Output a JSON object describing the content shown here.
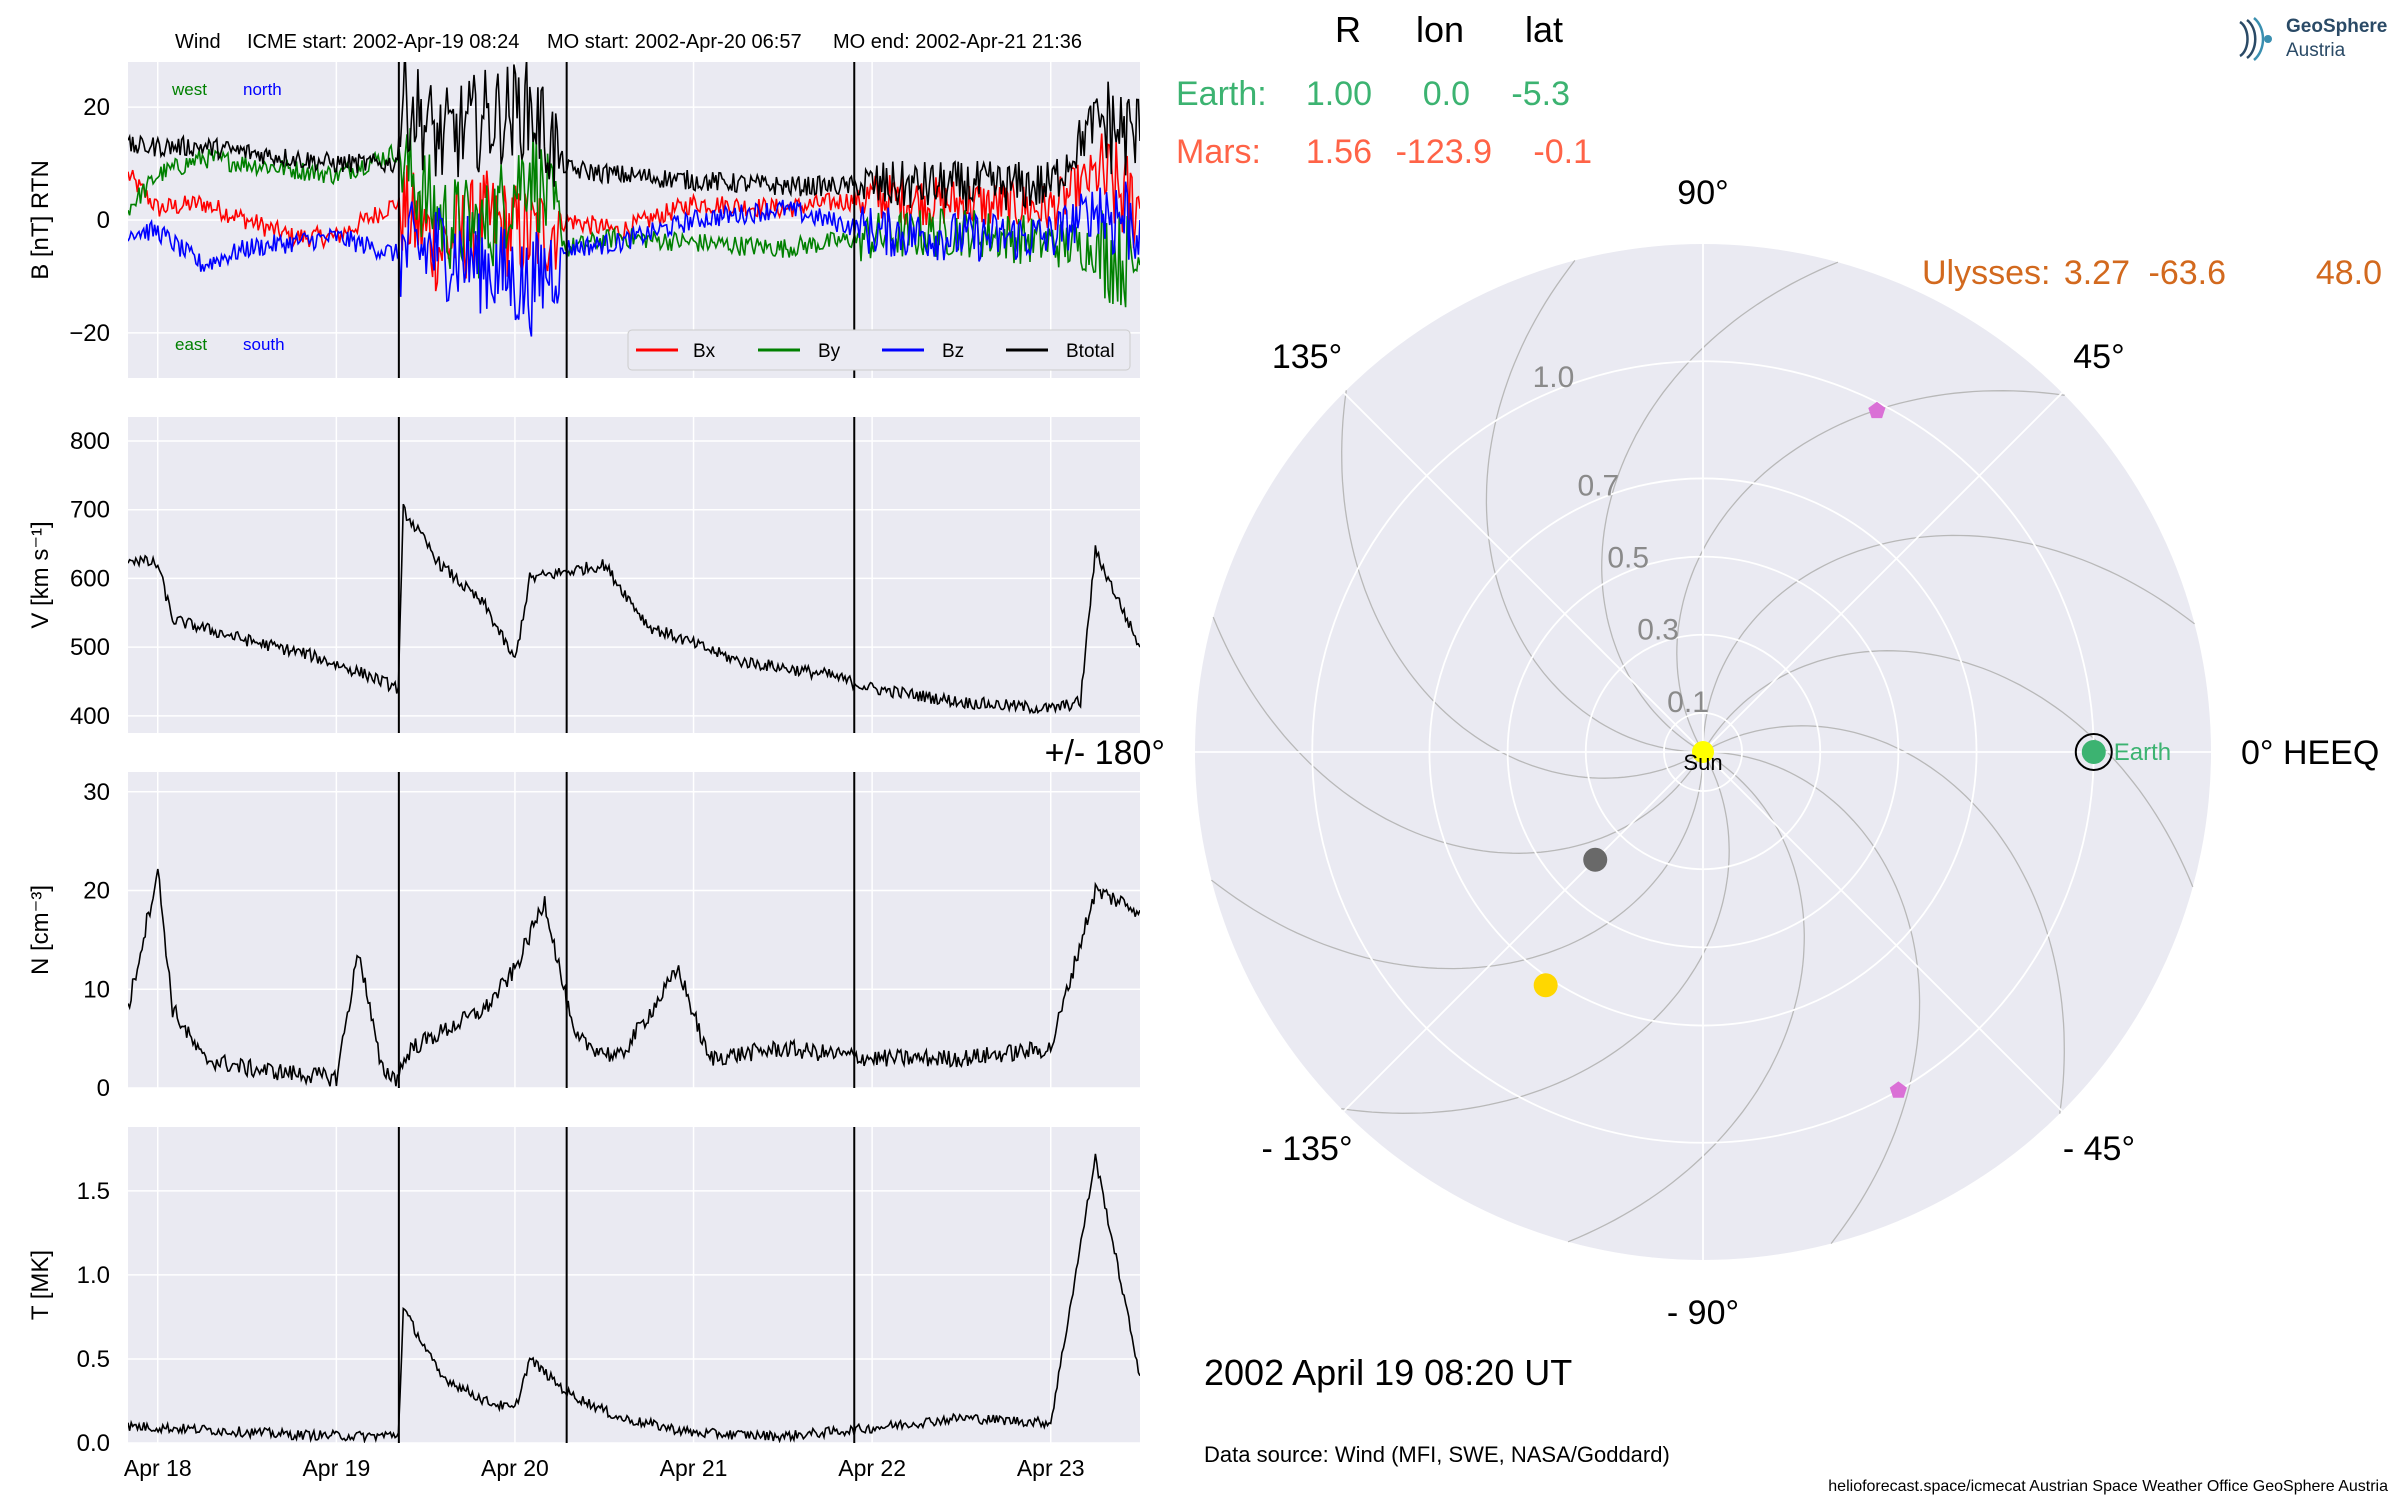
{
  "header": {
    "spacecraft": "Wind",
    "icme_start": "ICME start: 2002-Apr-19 08:24",
    "mo_start": "MO start: 2002-Apr-20 06:57",
    "mo_end": "MO end: 2002-Apr-21 21:36"
  },
  "logo": {
    "line1": "GeoSphere",
    "line2": "Austria"
  },
  "footer": {
    "date": "2002 April 19  08:20 UT",
    "source": "Data source: Wind (MFI, SWE, NASA/Goddard)",
    "credits": "helioforecast.space/icmecat   Austrian Space Weather Office   GeoSphere Austria"
  },
  "colors": {
    "panel_bg": "#eaeaf2",
    "grid": "#ffffff",
    "bx": "#ff0000",
    "by": "#008000",
    "bz": "#0000ff",
    "btotal": "#000000",
    "earth": "#3cb371",
    "mars": "#ff6347",
    "ulysses": "#d2691e",
    "sun": "#ffff00",
    "mercury": "#696969",
    "venus": "#ffd700",
    "stereo": "#da70d6"
  },
  "chart_data": [
    {
      "type": "line",
      "panel": "magnetic-field",
      "ylabel": "B [nT] RTN",
      "ylim": [
        -28,
        28
      ],
      "yticks": [
        -20,
        0,
        20
      ],
      "ytick_labels": [
        "−20",
        "0",
        "20"
      ],
      "x_start": "2002-04-17 20:00",
      "x_end": "2002-04-23 12:00",
      "x_ticks": [
        "2002-04-18",
        "2002-04-19",
        "2002-04-20",
        "2002-04-21",
        "2002-04-22",
        "2002-04-23"
      ],
      "x_tick_labels": [
        "Apr 18",
        "Apr 19",
        "Apr 20",
        "Apr 21",
        "Apr 22",
        "Apr 23"
      ],
      "event_lines": [
        "2002-04-19 08:24",
        "2002-04-20 06:57",
        "2002-04-21 21:36"
      ],
      "annotations": [
        "west",
        "north",
        "east",
        "south"
      ],
      "legend_placement": "lower-right",
      "grid": true,
      "series": [
        {
          "name": "Bx",
          "color": "#ff0000",
          "points": [
            [
              "2002-04-17 20:00",
              8
            ],
            [
              "2002-04-18 00:00",
              2
            ],
            [
              "2002-04-18 06:00",
              3
            ],
            [
              "2002-04-18 12:00",
              0
            ],
            [
              "2002-04-18 18:00",
              -3
            ],
            [
              "2002-04-19 00:00",
              -3
            ],
            [
              "2002-04-19 08:00",
              3
            ],
            [
              "2002-04-19 14:00",
              -5
            ],
            [
              "2002-04-19 20:00",
              0
            ],
            [
              "2002-04-20 02:00",
              -3
            ],
            [
              "2002-04-20 07:00",
              0
            ],
            [
              "2002-04-20 14:00",
              -2
            ],
            [
              "2002-04-21 00:00",
              3
            ],
            [
              "2002-04-21 12:00",
              2
            ],
            [
              "2002-04-22 00:00",
              4
            ],
            [
              "2002-04-22 12:00",
              3
            ],
            [
              "2002-04-23 00:00",
              2
            ],
            [
              "2002-04-23 06:00",
              8
            ],
            [
              "2002-04-23 12:00",
              2
            ]
          ]
        },
        {
          "name": "By",
          "color": "#008000",
          "points": [
            [
              "2002-04-17 20:00",
              2
            ],
            [
              "2002-04-18 00:00",
              8
            ],
            [
              "2002-04-18 06:00",
              11
            ],
            [
              "2002-04-18 12:00",
              10
            ],
            [
              "2002-04-18 18:00",
              9
            ],
            [
              "2002-04-19 00:00",
              8
            ],
            [
              "2002-04-19 08:00",
              12
            ],
            [
              "2002-04-19 14:00",
              0
            ],
            [
              "2002-04-19 20:00",
              -2
            ],
            [
              "2002-04-20 02:00",
              10
            ],
            [
              "2002-04-20 07:00",
              -5
            ],
            [
              "2002-04-20 14:00",
              -3
            ],
            [
              "2002-04-21 00:00",
              -4
            ],
            [
              "2002-04-21 12:00",
              -5
            ],
            [
              "2002-04-22 00:00",
              -3
            ],
            [
              "2002-04-22 12:00",
              -2
            ],
            [
              "2002-04-23 00:00",
              -4
            ],
            [
              "2002-04-23 06:00",
              -5
            ],
            [
              "2002-04-23 12:00",
              -8
            ]
          ]
        },
        {
          "name": "Bz",
          "color": "#0000ff",
          "points": [
            [
              "2002-04-17 20:00",
              -2
            ],
            [
              "2002-04-18 00:00",
              -2
            ],
            [
              "2002-04-18 06:00",
              -8
            ],
            [
              "2002-04-18 12:00",
              -5
            ],
            [
              "2002-04-18 18:00",
              -4
            ],
            [
              "2002-04-19 00:00",
              -3
            ],
            [
              "2002-04-19 08:00",
              -6
            ],
            [
              "2002-04-19 14:00",
              -5
            ],
            [
              "2002-04-19 20:00",
              -8
            ],
            [
              "2002-04-20 02:00",
              -12
            ],
            [
              "2002-04-20 07:00",
              -5
            ],
            [
              "2002-04-20 14:00",
              -4
            ],
            [
              "2002-04-21 00:00",
              0
            ],
            [
              "2002-04-21 12:00",
              2
            ],
            [
              "2002-04-22 00:00",
              -2
            ],
            [
              "2002-04-22 12:00",
              -3
            ],
            [
              "2002-04-23 00:00",
              -3
            ],
            [
              "2002-04-23 06:00",
              2
            ],
            [
              "2002-04-23 12:00",
              0
            ]
          ]
        },
        {
          "name": "Btotal",
          "color": "#000000",
          "points": [
            [
              "2002-04-17 20:00",
              13
            ],
            [
              "2002-04-18 00:00",
              13
            ],
            [
              "2002-04-18 06:00",
              13
            ],
            [
              "2002-04-18 12:00",
              12
            ],
            [
              "2002-04-18 18:00",
              11
            ],
            [
              "2002-04-19 00:00",
              10
            ],
            [
              "2002-04-19 08:00",
              10
            ],
            [
              "2002-04-19 09:00",
              22
            ],
            [
              "2002-04-19 14:00",
              14
            ],
            [
              "2002-04-19 20:00",
              18
            ],
            [
              "2002-04-20 02:00",
              20
            ],
            [
              "2002-04-20 07:00",
              9
            ],
            [
              "2002-04-20 14:00",
              8
            ],
            [
              "2002-04-21 00:00",
              7
            ],
            [
              "2002-04-21 12:00",
              6
            ],
            [
              "2002-04-22 00:00",
              6
            ],
            [
              "2002-04-22 12:00",
              6
            ],
            [
              "2002-04-23 00:00",
              6
            ],
            [
              "2002-04-23 06:00",
              18
            ],
            [
              "2002-04-23 12:00",
              14
            ]
          ]
        }
      ]
    },
    {
      "type": "line",
      "panel": "speed",
      "ylabel": "V [km s⁻¹]",
      "ylim": [
        375,
        835
      ],
      "yticks": [
        400,
        500,
        600,
        700,
        800
      ],
      "ytick_labels": [
        "400",
        "500",
        "600",
        "700",
        "800"
      ],
      "event_lines": [
        "2002-04-19 08:24",
        "2002-04-20 06:57",
        "2002-04-21 21:36"
      ],
      "grid": true,
      "series": [
        {
          "name": "",
          "color": "#000000",
          "points": [
            [
              "2002-04-17 20:00",
              630
            ],
            [
              "2002-04-18 00:00",
              620
            ],
            [
              "2002-04-18 02:00",
              540
            ],
            [
              "2002-04-18 12:00",
              510
            ],
            [
              "2002-04-18 20:00",
              490
            ],
            [
              "2002-04-19 04:00",
              460
            ],
            [
              "2002-04-19 08:20",
              440
            ],
            [
              "2002-04-19 09:00",
              700
            ],
            [
              "2002-04-19 14:00",
              620
            ],
            [
              "2002-04-19 20:00",
              560
            ],
            [
              "2002-04-20 00:00",
              480
            ],
            [
              "2002-04-20 02:00",
              600
            ],
            [
              "2002-04-20 07:00",
              610
            ],
            [
              "2002-04-20 12:00",
              620
            ],
            [
              "2002-04-20 18:00",
              530
            ],
            [
              "2002-04-21 06:00",
              480
            ],
            [
              "2002-04-21 18:00",
              460
            ],
            [
              "2002-04-22 00:00",
              440
            ],
            [
              "2002-04-22 12:00",
              420
            ],
            [
              "2002-04-23 00:00",
              410
            ],
            [
              "2002-04-23 04:00",
              420
            ],
            [
              "2002-04-23 06:00",
              640
            ],
            [
              "2002-04-23 12:00",
              500
            ]
          ]
        }
      ]
    },
    {
      "type": "line",
      "panel": "density",
      "ylabel": "N [cm⁻³]",
      "ylim": [
        0,
        32
      ],
      "yticks": [
        0,
        10,
        20,
        30
      ],
      "ytick_labels": [
        "0",
        "10",
        "20",
        "30"
      ],
      "event_lines": [
        "2002-04-19 08:24",
        "2002-04-20 06:57",
        "2002-04-21 21:36"
      ],
      "grid": true,
      "series": [
        {
          "name": "",
          "color": "#000000",
          "points": [
            [
              "2002-04-17 20:00",
              8
            ],
            [
              "2002-04-18 00:00",
              22
            ],
            [
              "2002-04-18 02:00",
              8
            ],
            [
              "2002-04-18 06:00",
              3
            ],
            [
              "2002-04-18 12:00",
              2
            ],
            [
              "2002-04-19 00:00",
              1
            ],
            [
              "2002-04-19 03:00",
              14
            ],
            [
              "2002-04-19 06:00",
              2
            ],
            [
              "2002-04-19 08:00",
              1
            ],
            [
              "2002-04-19 10:00",
              4
            ],
            [
              "2002-04-19 20:00",
              8
            ],
            [
              "2002-04-20 00:00",
              12
            ],
            [
              "2002-04-20 04:00",
              19
            ],
            [
              "2002-04-20 08:00",
              5
            ],
            [
              "2002-04-20 14:00",
              3
            ],
            [
              "2002-04-20 22:00",
              12
            ],
            [
              "2002-04-21 02:00",
              3
            ],
            [
              "2002-04-21 12:00",
              4
            ],
            [
              "2002-04-22 00:00",
              3
            ],
            [
              "2002-04-22 12:00",
              3
            ],
            [
              "2002-04-23 00:00",
              4
            ],
            [
              "2002-04-23 06:00",
              20
            ],
            [
              "2002-04-23 12:00",
              18
            ]
          ]
        }
      ]
    },
    {
      "type": "line",
      "panel": "temperature",
      "ylabel": "T [MK]",
      "ylim": [
        0,
        1.88
      ],
      "yticks": [
        0.0,
        0.5,
        1.0,
        1.5
      ],
      "ytick_labels": [
        "0.0",
        "0.5",
        "1.0",
        "1.5"
      ],
      "event_lines": [
        "2002-04-19 08:24",
        "2002-04-20 06:57",
        "2002-04-21 21:36"
      ],
      "grid": true,
      "series": [
        {
          "name": "",
          "color": "#000000",
          "points": [
            [
              "2002-04-17 20:00",
              0.1
            ],
            [
              "2002-04-18 06:00",
              0.08
            ],
            [
              "2002-04-18 18:00",
              0.05
            ],
            [
              "2002-04-19 04:00",
              0.04
            ],
            [
              "2002-04-19 08:20",
              0.05
            ],
            [
              "2002-04-19 09:00",
              0.8
            ],
            [
              "2002-04-19 14:00",
              0.4
            ],
            [
              "2002-04-19 20:00",
              0.25
            ],
            [
              "2002-04-20 00:00",
              0.2
            ],
            [
              "2002-04-20 02:00",
              0.5
            ],
            [
              "2002-04-20 07:00",
              0.3
            ],
            [
              "2002-04-20 14:00",
              0.15
            ],
            [
              "2002-04-21 00:00",
              0.06
            ],
            [
              "2002-04-21 12:00",
              0.04
            ],
            [
              "2002-04-21 22:00",
              0.08
            ],
            [
              "2002-04-22 12:00",
              0.15
            ],
            [
              "2002-04-23 00:00",
              0.12
            ],
            [
              "2002-04-23 06:00",
              1.7
            ],
            [
              "2002-04-23 12:00",
              0.4
            ]
          ]
        }
      ]
    },
    {
      "type": "scatter",
      "panel": "polar-position-plot",
      "projection": "polar",
      "r_ticks": [
        0.1,
        0.3,
        0.5,
        0.7,
        1.0
      ],
      "r_tick_labels": [
        "0.1",
        "0.3",
        "0.5",
        "0.7",
        "1.0"
      ],
      "r_max": 1.3,
      "angle_labels": [
        {
          "angle": 0,
          "label": "0° HEEQ"
        },
        {
          "angle": 45,
          "label": "45°"
        },
        {
          "angle": 90,
          "label": "90°"
        },
        {
          "angle": 135,
          "label": "135°"
        },
        {
          "angle": 180,
          "label": "+/- 180°"
        },
        {
          "angle": -135,
          "label": "- 135°"
        },
        {
          "angle": -90,
          "label": "- 90°"
        },
        {
          "angle": -45,
          "label": "- 45°"
        }
      ],
      "grid": true,
      "table_headers": [
        "R",
        "lon",
        "lat"
      ],
      "table_rows": [
        {
          "name": "Earth:",
          "R": "1.00",
          "lon": "0.0",
          "lat": "-5.3",
          "color": "#3cb371"
        },
        {
          "name": "Mars:",
          "R": "1.56",
          "lon": "-123.9",
          "lat": "-0.1",
          "color": "#ff6347"
        },
        {
          "name": "Ulysses:",
          "R": "3.27",
          "lon": "-63.6",
          "lat": "48.0",
          "color": "#d2691e"
        }
      ],
      "bodies": [
        {
          "id": "sun",
          "label": "Sun",
          "r": 0.0,
          "lon": 0,
          "color": "#ffff00",
          "marker": "circle"
        },
        {
          "id": "earth",
          "label": "Earth",
          "r": 1.0,
          "lon": 0.0,
          "color": "#3cb371",
          "marker": "circle"
        },
        {
          "id": "mercury",
          "label": "",
          "r": 0.39,
          "lon": -135,
          "color": "#696969",
          "marker": "circle"
        },
        {
          "id": "venus",
          "label": "",
          "r": 0.72,
          "lon": -124,
          "color": "#ffd700",
          "marker": "circle"
        },
        {
          "id": "stereo-a",
          "label": "",
          "r": 0.98,
          "lon": 63,
          "color": "#da70d6",
          "marker": "pentagon"
        },
        {
          "id": "stereo-b",
          "label": "",
          "r": 1.0,
          "lon": -60,
          "color": "#da70d6",
          "marker": "pentagon"
        }
      ]
    }
  ]
}
